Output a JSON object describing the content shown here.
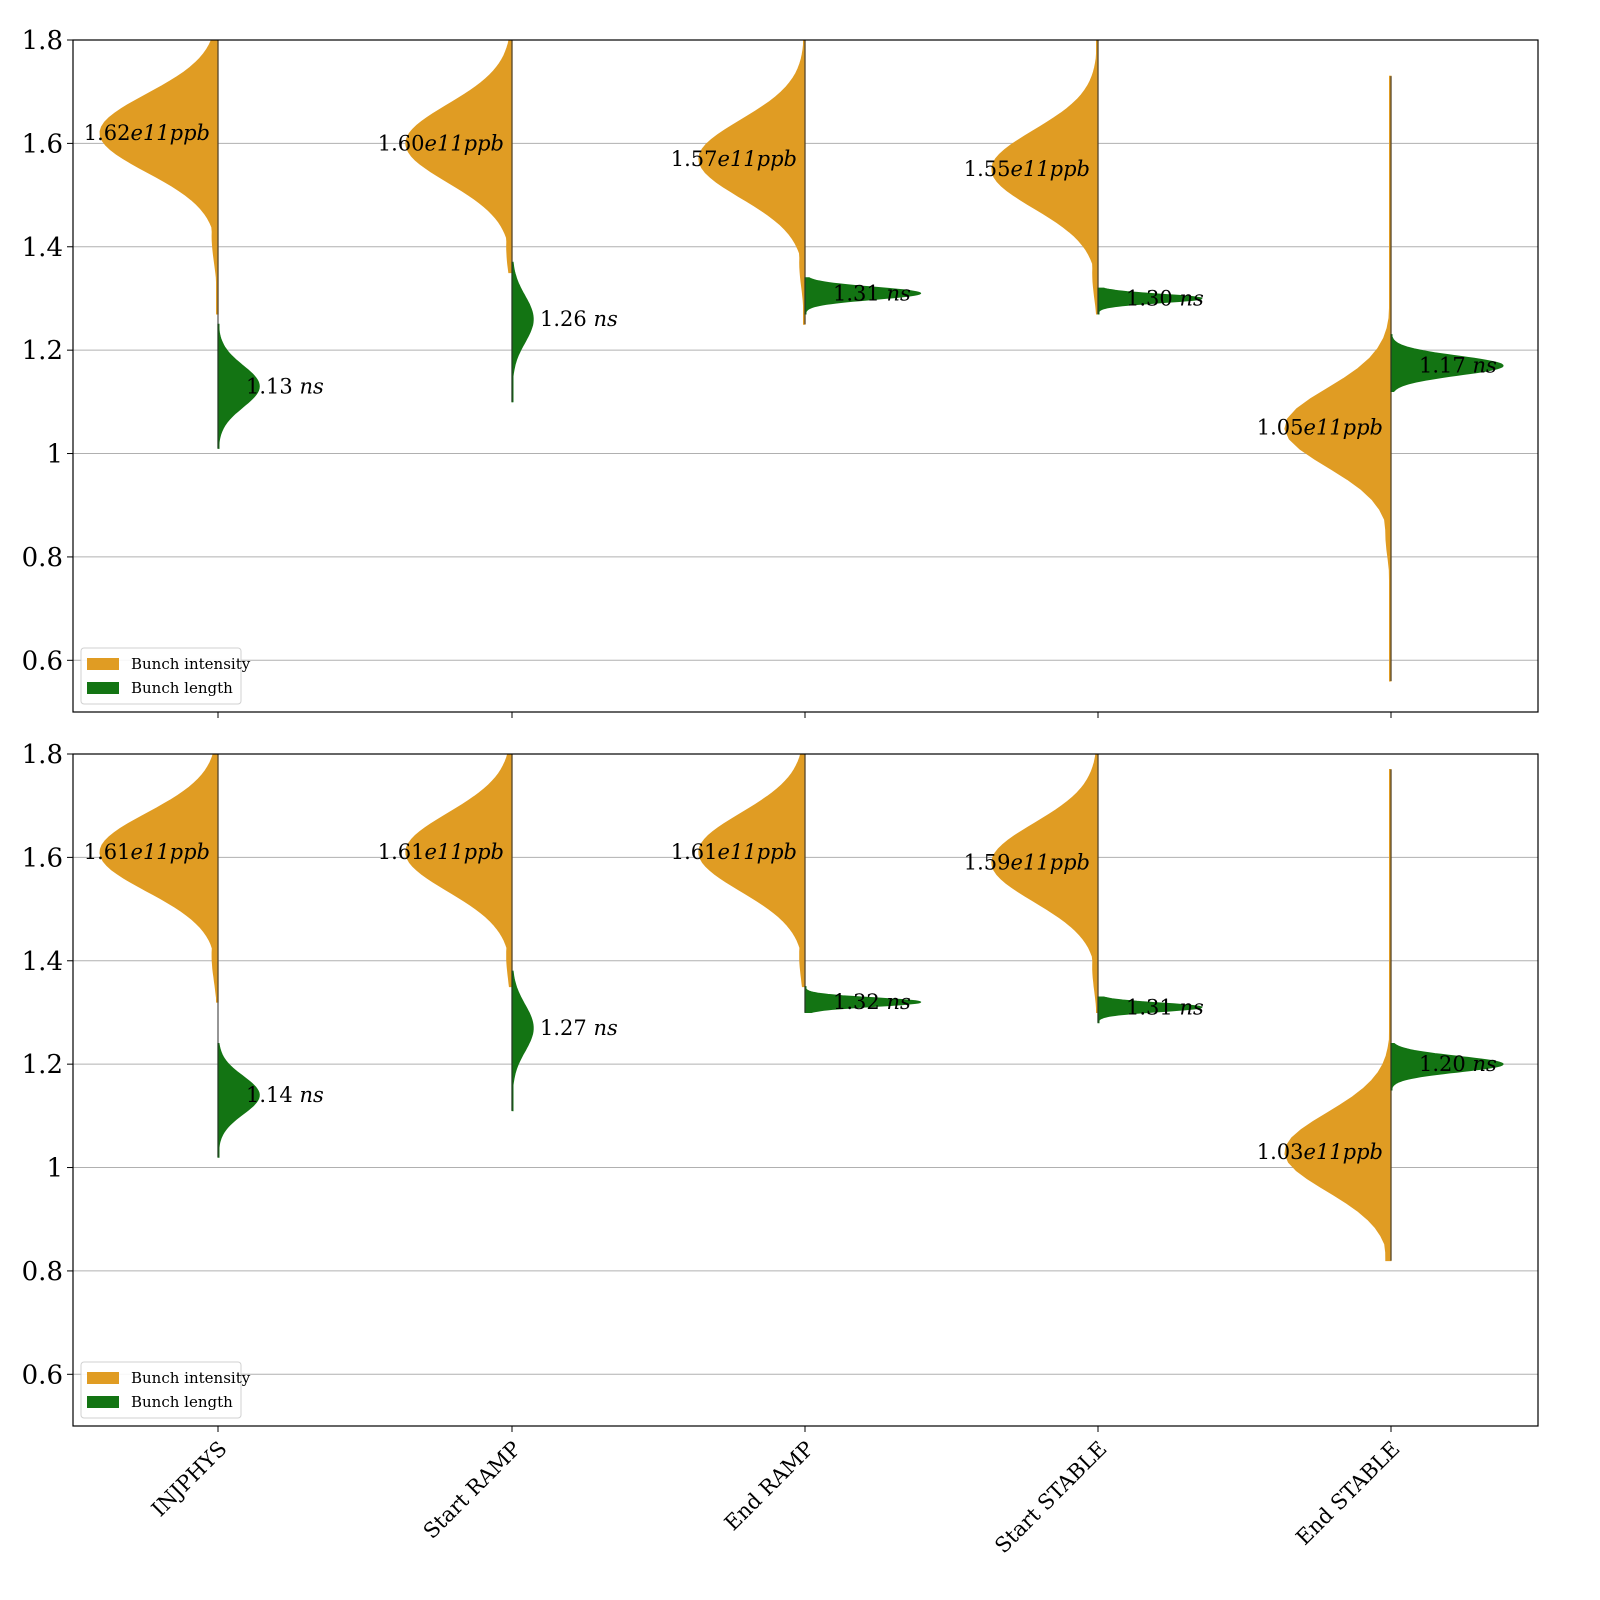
{
  "colors": {
    "intensity": "#e09c23",
    "length": "#137413",
    "grid": "#b0b0b0",
    "rug": "#2a2a2a"
  },
  "chart_data": [
    {
      "type": "violin",
      "panel": "top",
      "title": "",
      "xlabel": "",
      "ylabel": "",
      "ylim": [
        0.5,
        1.8
      ],
      "yticks": [
        0.6,
        0.8,
        1.0,
        1.2,
        1.4,
        1.6,
        1.8
      ],
      "categories": [
        "INJPHYS",
        "Start RAMP",
        "End RAMP",
        "Start STABLE",
        "End STABLE"
      ],
      "grid": "horizontal",
      "legend": {
        "placement": "lower-left",
        "entries": [
          "Bunch intensity",
          "Bunch length"
        ]
      },
      "series": [
        {
          "name": "Bunch intensity",
          "side": "left",
          "unit": "e11ppb",
          "medians": [
            1.62,
            1.6,
            1.57,
            1.55,
            1.05
          ],
          "labels": [
            "1.62",
            "1.60",
            "1.57",
            "1.55",
            "1.05"
          ],
          "ranges": [
            [
              1.27,
              1.8
            ],
            [
              1.35,
              1.8
            ],
            [
              1.25,
              1.8
            ],
            [
              1.27,
              1.8
            ],
            [
              0.56,
              1.73
            ]
          ]
        },
        {
          "name": "Bunch length",
          "side": "right",
          "unit": "ns",
          "medians": [
            1.13,
            1.26,
            1.31,
            1.3,
            1.17
          ],
          "labels": [
            "1.13",
            "1.26",
            "1.31",
            "1.30",
            "1.17"
          ],
          "ranges": [
            [
              1.01,
              1.25
            ],
            [
              1.1,
              1.37
            ],
            [
              1.27,
              1.34
            ],
            [
              1.27,
              1.32
            ],
            [
              1.12,
              1.23
            ]
          ]
        }
      ]
    },
    {
      "type": "violin",
      "panel": "bottom",
      "title": "",
      "xlabel": "",
      "ylabel": "",
      "ylim": [
        0.5,
        1.8
      ],
      "yticks": [
        0.6,
        0.8,
        1.0,
        1.2,
        1.4,
        1.6,
        1.8
      ],
      "categories": [
        "INJPHYS",
        "Start RAMP",
        "End RAMP",
        "Start STABLE",
        "End STABLE"
      ],
      "grid": "horizontal",
      "legend": {
        "placement": "lower-left",
        "entries": [
          "Bunch intensity",
          "Bunch length"
        ]
      },
      "series": [
        {
          "name": "Bunch intensity",
          "side": "left",
          "unit": "e11ppb",
          "medians": [
            1.61,
            1.61,
            1.61,
            1.59,
            1.03
          ],
          "labels": [
            "1.61",
            "1.61",
            "1.61",
            "1.59",
            "1.03"
          ],
          "ranges": [
            [
              1.32,
              1.8
            ],
            [
              1.35,
              1.8
            ],
            [
              1.35,
              1.8
            ],
            [
              1.3,
              1.8
            ],
            [
              0.82,
              1.77
            ]
          ]
        },
        {
          "name": "Bunch length",
          "side": "right",
          "unit": "ns",
          "medians": [
            1.14,
            1.27,
            1.32,
            1.31,
            1.2
          ],
          "labels": [
            "1.14",
            "1.27",
            "1.32",
            "1.31",
            "1.20"
          ],
          "ranges": [
            [
              1.02,
              1.24
            ],
            [
              1.11,
              1.38
            ],
            [
              1.3,
              1.35
            ],
            [
              1.28,
              1.33
            ],
            [
              1.15,
              1.24
            ]
          ]
        }
      ]
    }
  ]
}
